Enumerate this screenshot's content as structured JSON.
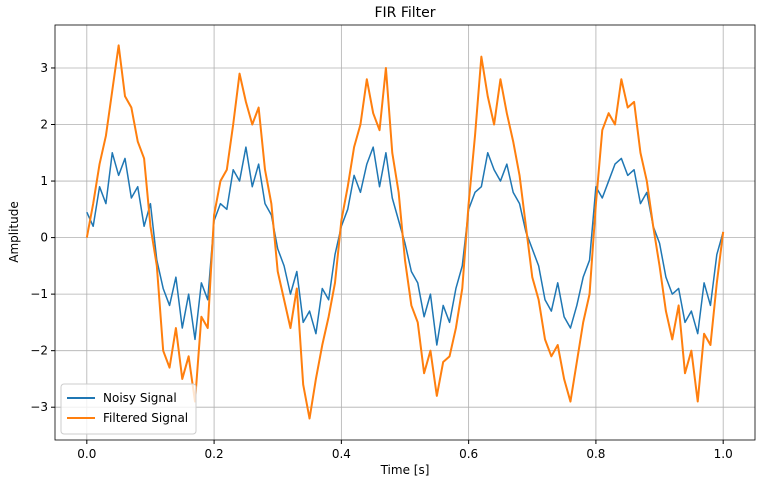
{
  "chart_data": {
    "type": "line",
    "title": "FIR Filter",
    "xlabel": "Time [s]",
    "ylabel": "Amplitude",
    "x": [
      0,
      0.01,
      0.02,
      0.03,
      0.04,
      0.05,
      0.06,
      0.07,
      0.08,
      0.09,
      0.1,
      0.11,
      0.12,
      0.13,
      0.14,
      0.15,
      0.16,
      0.17,
      0.18,
      0.19,
      0.2,
      0.21,
      0.22,
      0.23,
      0.24,
      0.25,
      0.26,
      0.27,
      0.28,
      0.29,
      0.3,
      0.31,
      0.32,
      0.33,
      0.34,
      0.35,
      0.36,
      0.37,
      0.38,
      0.39,
      0.4,
      0.41,
      0.42,
      0.43,
      0.44,
      0.45,
      0.46,
      0.47,
      0.48,
      0.49,
      0.5,
      0.51,
      0.52,
      0.53,
      0.54,
      0.55,
      0.56,
      0.57,
      0.58,
      0.59,
      0.6,
      0.61,
      0.62,
      0.63,
      0.64,
      0.65,
      0.66,
      0.67,
      0.68,
      0.69,
      0.7,
      0.71,
      0.72,
      0.73,
      0.74,
      0.75,
      0.76,
      0.77,
      0.78,
      0.79,
      0.8,
      0.81,
      0.82,
      0.83,
      0.84,
      0.85,
      0.86,
      0.87,
      0.88,
      0.89,
      0.9,
      0.91,
      0.92,
      0.93,
      0.94,
      0.95,
      0.96,
      0.97,
      0.98,
      0.99,
      1
    ],
    "series": [
      {
        "name": "Noisy Signal",
        "color": "#1f77b4",
        "values": [
          0.45,
          0.2,
          0.9,
          0.6,
          1.5,
          1.1,
          1.4,
          0.7,
          0.9,
          0.2,
          0.6,
          -0.4,
          -0.9,
          -1.2,
          -0.7,
          -1.6,
          -1.0,
          -1.8,
          -0.8,
          -1.1,
          0.3,
          0.6,
          0.5,
          1.2,
          1.0,
          1.6,
          0.9,
          1.3,
          0.6,
          0.4,
          -0.2,
          -0.5,
          -1.0,
          -0.6,
          -1.5,
          -1.3,
          -1.7,
          -0.9,
          -1.1,
          -0.3,
          0.2,
          0.5,
          1.1,
          0.8,
          1.3,
          1.6,
          0.9,
          1.5,
          0.7,
          0.3,
          -0.1,
          -0.6,
          -0.8,
          -1.4,
          -1.0,
          -1.9,
          -1.2,
          -1.5,
          -0.9,
          -0.5,
          0.5,
          0.8,
          0.9,
          1.5,
          1.2,
          1.0,
          1.3,
          0.8,
          0.6,
          0.1,
          -0.2,
          -0.5,
          -1.1,
          -1.3,
          -0.8,
          -1.4,
          -1.6,
          -1.2,
          -0.7,
          -0.4,
          0.9,
          0.7,
          1.0,
          1.3,
          1.4,
          1.1,
          1.2,
          0.6,
          0.8,
          0.2,
          -0.1,
          -0.7,
          -1.0,
          -0.9,
          -1.5,
          -1.3,
          -1.7,
          -0.8,
          -1.2,
          -0.3,
          0.1
        ]
      },
      {
        "name": "Filtered Signal",
        "color": "#ff7f0e",
        "values": [
          0,
          0.6,
          1.3,
          1.8,
          2.6,
          3.4,
          2.5,
          2.3,
          1.7,
          1.4,
          0.2,
          -0.5,
          -2.0,
          -2.3,
          -1.6,
          -2.5,
          -2.1,
          -2.9,
          -1.4,
          -1.6,
          0.4,
          1.0,
          1.2,
          2.0,
          2.9,
          2.4,
          2.0,
          2.3,
          1.2,
          0.6,
          -0.6,
          -1.1,
          -1.6,
          -0.9,
          -2.6,
          -3.2,
          -2.5,
          -1.9,
          -1.4,
          -0.8,
          0.3,
          0.9,
          1.6,
          2.0,
          2.8,
          2.2,
          1.9,
          3.0,
          1.5,
          0.8,
          -0.4,
          -1.2,
          -1.5,
          -2.4,
          -2.0,
          -2.8,
          -2.2,
          -2.1,
          -1.6,
          -0.9,
          0.6,
          1.8,
          3.2,
          2.5,
          2.0,
          2.8,
          2.2,
          1.7,
          1.1,
          0.2,
          -0.7,
          -1.1,
          -1.8,
          -2.1,
          -1.9,
          -2.5,
          -2.9,
          -2.2,
          -1.5,
          -1.0,
          0.6,
          1.9,
          2.2,
          2.0,
          2.8,
          2.3,
          2.4,
          1.5,
          1.0,
          0.2,
          -0.5,
          -1.3,
          -1.8,
          -1.2,
          -2.4,
          -2.0,
          -2.9,
          -1.7,
          -1.9,
          -0.8,
          0.1
        ]
      }
    ],
    "xlim": [
      -0.05,
      1.05
    ],
    "ylim": [
      -3.58,
      3.76
    ],
    "xticks": [
      {
        "value": 0,
        "label": "0.0"
      },
      0.2,
      0.4,
      0.6,
      0.8,
      {
        "value": 1,
        "label": "1.0"
      }
    ],
    "yticks": [
      {
        "value": -3,
        "label": "−3"
      },
      {
        "value": -2,
        "label": "−2"
      },
      {
        "value": -1,
        "label": "−1"
      },
      0,
      1,
      2,
      3
    ],
    "grid": true,
    "legend": "lower left"
  }
}
